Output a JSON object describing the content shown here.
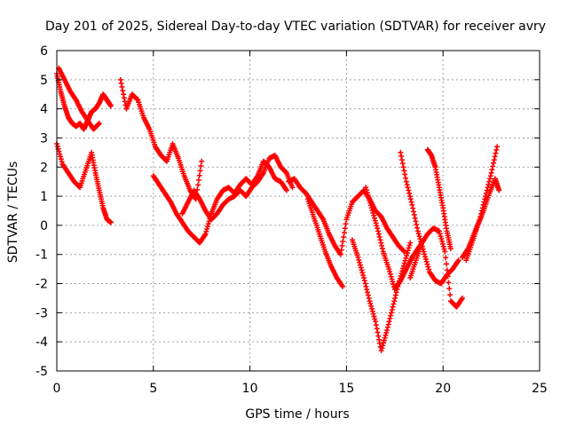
{
  "chart_data": {
    "type": "scatter",
    "title": "Day 201 of 2025, Sidereal Day-to-day VTEC variation (SDTVAR) for receiver avry",
    "xlabel": "GPS time / hours",
    "ylabel": "SDTVAR / TECUs",
    "xlim": [
      0,
      25
    ],
    "ylim": [
      -5,
      6
    ],
    "xticks": [
      0,
      5,
      10,
      15,
      20,
      25
    ],
    "yticks": [
      -5,
      -4,
      -3,
      -2,
      -1,
      0,
      1,
      2,
      3,
      4,
      5,
      6
    ],
    "grid": true,
    "marker": "plus",
    "color": "#ff0000",
    "series": [
      {
        "name": "trace-1",
        "x": [
          0.0,
          0.2,
          0.4,
          0.6,
          0.8,
          1.0,
          1.2,
          1.4,
          1.6,
          1.8,
          2.0,
          2.2,
          2.4,
          2.6,
          2.8
        ],
        "y": [
          5.2,
          4.6,
          4.1,
          3.7,
          3.5,
          3.4,
          3.5,
          3.3,
          3.6,
          3.9,
          4.0,
          4.2,
          4.5,
          4.3,
          4.1
        ]
      },
      {
        "name": "trace-2",
        "x": [
          0.0,
          0.3,
          0.6,
          0.9,
          1.2,
          1.5,
          1.8,
          2.0,
          2.2,
          2.4,
          2.6,
          2.8
        ],
        "y": [
          2.8,
          2.1,
          1.8,
          1.5,
          1.3,
          1.9,
          2.5,
          1.8,
          1.2,
          0.6,
          0.2,
          0.1
        ]
      },
      {
        "name": "trace-3",
        "x": [
          0.1,
          0.4,
          0.7,
          1.0,
          1.3,
          1.6,
          1.9,
          2.2
        ],
        "y": [
          5.4,
          5.0,
          4.6,
          4.3,
          3.9,
          3.6,
          3.3,
          3.5
        ]
      },
      {
        "name": "trace-4",
        "x": [
          3.3,
          3.6,
          3.9,
          4.2,
          4.5,
          4.8,
          5.1,
          5.4,
          5.7,
          6.0,
          6.3,
          6.6,
          6.9,
          7.2,
          7.5
        ],
        "y": [
          5.0,
          4.0,
          4.5,
          4.3,
          3.7,
          3.3,
          2.7,
          2.4,
          2.2,
          2.8,
          2.3,
          1.7,
          1.2,
          0.9,
          2.2
        ]
      },
      {
        "name": "trace-5",
        "x": [
          5.0,
          5.3,
          5.6,
          5.9,
          6.2,
          6.5,
          6.8,
          7.1,
          7.4,
          7.7,
          8.0,
          8.3,
          8.6,
          8.9,
          9.2,
          9.5,
          9.8,
          10.1,
          10.4,
          10.7,
          11.0,
          11.3,
          11.6,
          11.9
        ],
        "y": [
          1.7,
          1.4,
          1.1,
          0.8,
          0.4,
          0.1,
          -0.2,
          -0.4,
          -0.6,
          -0.3,
          0.4,
          0.9,
          1.2,
          1.3,
          1.1,
          1.4,
          1.6,
          1.4,
          1.7,
          2.2,
          2.0,
          1.6,
          1.5,
          1.2
        ]
      },
      {
        "name": "trace-6",
        "x": [
          6.5,
          6.8,
          7.1,
          7.4,
          7.7,
          8.0,
          8.3,
          8.6,
          8.9,
          9.2,
          9.5,
          9.8,
          10.1,
          10.4,
          10.7,
          11.0,
          11.3,
          11.6,
          11.9,
          12.2
        ],
        "y": [
          0.4,
          0.8,
          1.2,
          0.9,
          0.5,
          0.2,
          0.4,
          0.7,
          0.9,
          1.0,
          1.2,
          1.0,
          1.3,
          1.5,
          1.8,
          2.3,
          2.4,
          2.0,
          1.8,
          1.3
        ]
      },
      {
        "name": "trace-7",
        "x": [
          12.0,
          12.3,
          12.6,
          12.9,
          13.2,
          13.5,
          13.8,
          14.1,
          14.4,
          14.7,
          15.0,
          15.3,
          15.6,
          15.9,
          16.2,
          16.5,
          16.8,
          17.1,
          17.4,
          17.7,
          18.0
        ],
        "y": [
          1.5,
          1.6,
          1.3,
          1.1,
          0.8,
          0.5,
          0.2,
          -0.3,
          -0.7,
          -1.0,
          0.2,
          0.8,
          1.0,
          1.2,
          0.9,
          0.5,
          0.3,
          -0.1,
          -0.4,
          -0.7,
          -0.9
        ]
      },
      {
        "name": "trace-8",
        "x": [
          13.0,
          13.3,
          13.6,
          13.9,
          14.2,
          14.5,
          14.8
        ],
        "y": [
          0.9,
          0.3,
          -0.3,
          -0.9,
          -1.4,
          -1.8,
          -2.1
        ]
      },
      {
        "name": "trace-9",
        "x": [
          15.3,
          15.6,
          15.9,
          16.2,
          16.5,
          16.8,
          17.1,
          17.4,
          17.7,
          18.0,
          18.3
        ],
        "y": [
          -0.5,
          -1.1,
          -1.8,
          -2.6,
          -3.3,
          -4.3,
          -3.6,
          -2.8,
          -2.0,
          -1.3,
          -0.6
        ]
      },
      {
        "name": "trace-10",
        "x": [
          16.0,
          16.3,
          16.6,
          16.9,
          17.2,
          17.5,
          17.8,
          18.1,
          18.4,
          18.7,
          19.0
        ],
        "y": [
          1.3,
          0.6,
          -0.1,
          -0.9,
          -1.5,
          -2.2,
          -1.9,
          -1.5,
          -1.1,
          -0.8,
          -0.5
        ]
      },
      {
        "name": "trace-11",
        "x": [
          17.8,
          18.1,
          18.4,
          18.7,
          19.0,
          19.3,
          19.6,
          19.9,
          20.2,
          20.5,
          20.8
        ],
        "y": [
          2.5,
          1.5,
          0.7,
          -0.2,
          -0.9,
          -1.6,
          -1.9,
          -2.0,
          -1.7,
          -1.5,
          -1.2
        ]
      },
      {
        "name": "trace-12",
        "x": [
          19.2,
          19.4,
          19.6,
          19.8,
          20.0,
          20.2,
          20.4
        ],
        "y": [
          2.6,
          2.4,
          2.0,
          1.3,
          0.6,
          -0.2,
          -0.8
        ]
      },
      {
        "name": "trace-13",
        "x": [
          18.3,
          18.6,
          18.9,
          19.2,
          19.5,
          19.8,
          20.1,
          20.4,
          20.7,
          21.0
        ],
        "y": [
          -1.8,
          -1.2,
          -0.6,
          -0.3,
          -0.1,
          -0.2,
          -0.9,
          -2.6,
          -2.8,
          -2.5
        ]
      },
      {
        "name": "trace-14",
        "x": [
          21.0,
          21.3,
          21.6,
          21.9,
          22.2,
          22.5,
          22.8
        ],
        "y": [
          -1.1,
          -0.8,
          -0.3,
          0.2,
          1.0,
          1.8,
          2.7
        ]
      },
      {
        "name": "trace-15",
        "x": [
          21.2,
          21.5,
          21.8,
          22.1,
          22.4,
          22.7,
          22.9
        ],
        "y": [
          -1.2,
          -0.6,
          0.0,
          0.5,
          1.1,
          1.6,
          1.2
        ]
      }
    ]
  }
}
